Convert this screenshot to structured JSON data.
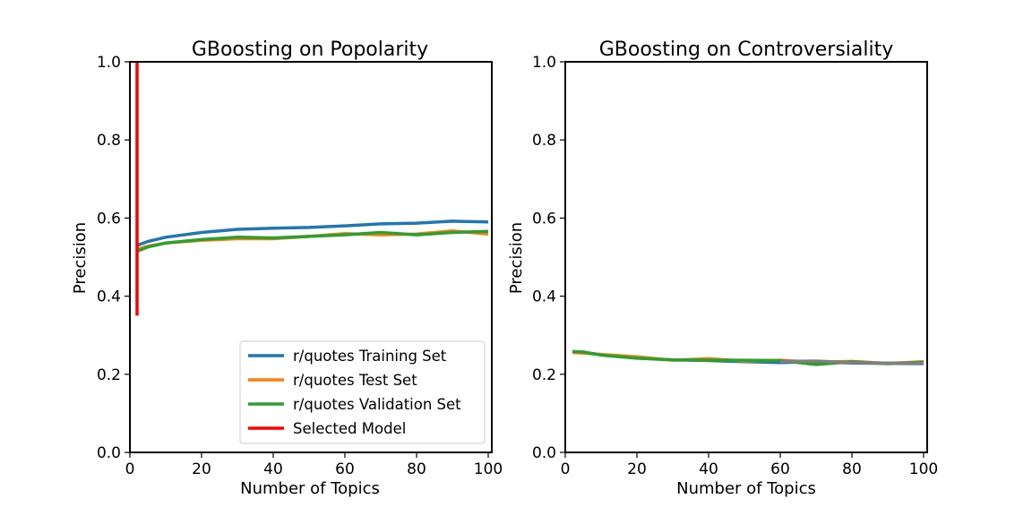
{
  "chart_data": [
    {
      "type": "line",
      "title": "GBoosting on Popolarity",
      "xlabel": "Number of Topics",
      "ylabel": "Precision",
      "xlim": [
        0,
        101
      ],
      "ylim": [
        0.0,
        1.0
      ],
      "xticks": [
        0,
        20,
        40,
        60,
        80,
        100
      ],
      "yticks": [
        0.0,
        0.2,
        0.4,
        0.6,
        0.8,
        1.0
      ],
      "grid": false,
      "legend": "lower-right",
      "series": [
        {
          "name": "r/quotes Training Set",
          "color": "#1f77b4",
          "x": [
            2,
            5,
            10,
            20,
            30,
            40,
            50,
            60,
            70,
            80,
            90,
            100
          ],
          "y": [
            0.53,
            0.54,
            0.551,
            0.563,
            0.571,
            0.574,
            0.576,
            0.58,
            0.585,
            0.587,
            0.592,
            0.59
          ]
        },
        {
          "name": "r/quotes Test Set",
          "color": "#ff7f0e",
          "x": [
            2,
            5,
            10,
            20,
            30,
            40,
            50,
            60,
            70,
            80,
            90,
            100
          ],
          "y": [
            0.52,
            0.528,
            0.536,
            0.543,
            0.547,
            0.547,
            0.553,
            0.56,
            0.557,
            0.559,
            0.567,
            0.559
          ]
        },
        {
          "name": "r/quotes Validation Set",
          "color": "#2ca02c",
          "x": [
            2,
            5,
            10,
            20,
            30,
            40,
            50,
            60,
            70,
            80,
            90,
            100
          ],
          "y": [
            0.515,
            0.526,
            0.536,
            0.545,
            0.551,
            0.549,
            0.553,
            0.557,
            0.563,
            0.557,
            0.563,
            0.566
          ]
        },
        {
          "name": "Selected Model",
          "color": "#ff0000",
          "x": [
            2,
            2
          ],
          "y": [
            0.35,
            1.0
          ]
        }
      ]
    },
    {
      "type": "line",
      "title": "GBoosting on Controversiality",
      "xlabel": "Number of Topics",
      "ylabel": "Precision",
      "xlim": [
        0,
        101
      ],
      "ylim": [
        0.0,
        1.0
      ],
      "xticks": [
        0,
        20,
        40,
        60,
        80,
        100
      ],
      "yticks": [
        0.0,
        0.2,
        0.4,
        0.6,
        0.8,
        1.0
      ],
      "grid": false,
      "series": [
        {
          "color": "#1f77b4",
          "x": [
            2,
            5,
            10,
            20,
            30,
            40,
            50,
            60,
            70,
            80,
            90,
            100
          ],
          "y": [
            0.258,
            0.256,
            0.25,
            0.242,
            0.237,
            0.235,
            0.232,
            0.23,
            0.232,
            0.229,
            0.228,
            0.227
          ]
        },
        {
          "color": "#ff7f0e",
          "x": [
            2,
            5,
            10,
            20,
            30,
            40,
            50,
            60,
            70,
            80,
            90,
            100
          ],
          "y": [
            0.256,
            0.254,
            0.251,
            0.245,
            0.236,
            0.24,
            0.234,
            0.236,
            0.231,
            0.233,
            0.228,
            0.232
          ]
        },
        {
          "color": "#2ca02c",
          "x": [
            2,
            5,
            10,
            20,
            30,
            40,
            50,
            60,
            70,
            80,
            90,
            100
          ],
          "y": [
            0.258,
            0.257,
            0.249,
            0.241,
            0.237,
            0.236,
            0.236,
            0.235,
            0.225,
            0.232,
            0.227,
            0.231
          ]
        },
        {
          "color": "#7f7f7f",
          "x": [
            60,
            70,
            80,
            90,
            100
          ],
          "y": [
            0.233,
            0.234,
            0.23,
            0.229,
            0.228
          ]
        }
      ]
    }
  ]
}
